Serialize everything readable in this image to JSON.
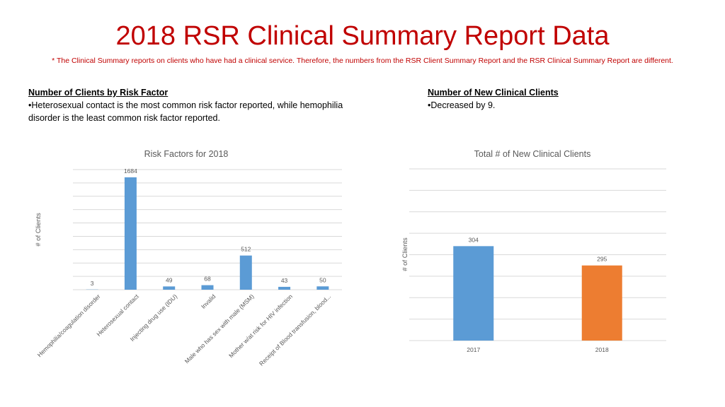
{
  "slide": {
    "title": "2018 RSR Clinical Summary Report Data",
    "note": "* The Clinical Summary reports on clients who have had a clinical service. Therefore, the numbers from the RSR Client Summary Report and the RSR Clinical Summary Report are different."
  },
  "left_text": {
    "heading": "Number of Clients by Risk Factor",
    "bullet": "•Heterosexual contact is the most common risk factor reported, while hemophilia disorder is the least common risk factor reported."
  },
  "right_text": {
    "heading": "Number of New Clinical Clients",
    "bullet": "•Decreased by 9."
  },
  "colors": {
    "title": "#c00000",
    "bar_blue": "#5b9bd5",
    "bar_orange": "#ed7d31",
    "grid": "#d9d9d9",
    "label": "#595959"
  },
  "chart_data": [
    {
      "type": "bar",
      "title": "Risk Factors for 2018",
      "xlabel": "",
      "ylabel": "# of Clients",
      "categories": [
        "Hemophilia/coagulation disorder",
        "Heterosexual contact",
        "Injecting drug use (IDU)",
        "Invalid",
        "Male who has sex with male (MSM)",
        "Mother w/at risk for HIV infection",
        "Receipt of Blood transfusion, blood..."
      ],
      "values": [
        3,
        1684,
        49,
        68,
        512,
        43,
        50
      ],
      "data_labels": [
        "3",
        "1684",
        "49",
        "68",
        "512",
        "43",
        "50"
      ],
      "ylim": [
        0,
        1800
      ],
      "grid": true,
      "legend": "none"
    },
    {
      "type": "bar",
      "title": "Total # of New Clinical Clients",
      "xlabel": "",
      "ylabel": "# of Clients",
      "categories": [
        "2017",
        "2018"
      ],
      "values": [
        304,
        295
      ],
      "data_labels": [
        "304",
        "295"
      ],
      "bar_colors": [
        "#5b9bd5",
        "#ed7d31"
      ],
      "ylim": [
        260,
        340
      ],
      "grid": true,
      "legend": "none"
    }
  ]
}
